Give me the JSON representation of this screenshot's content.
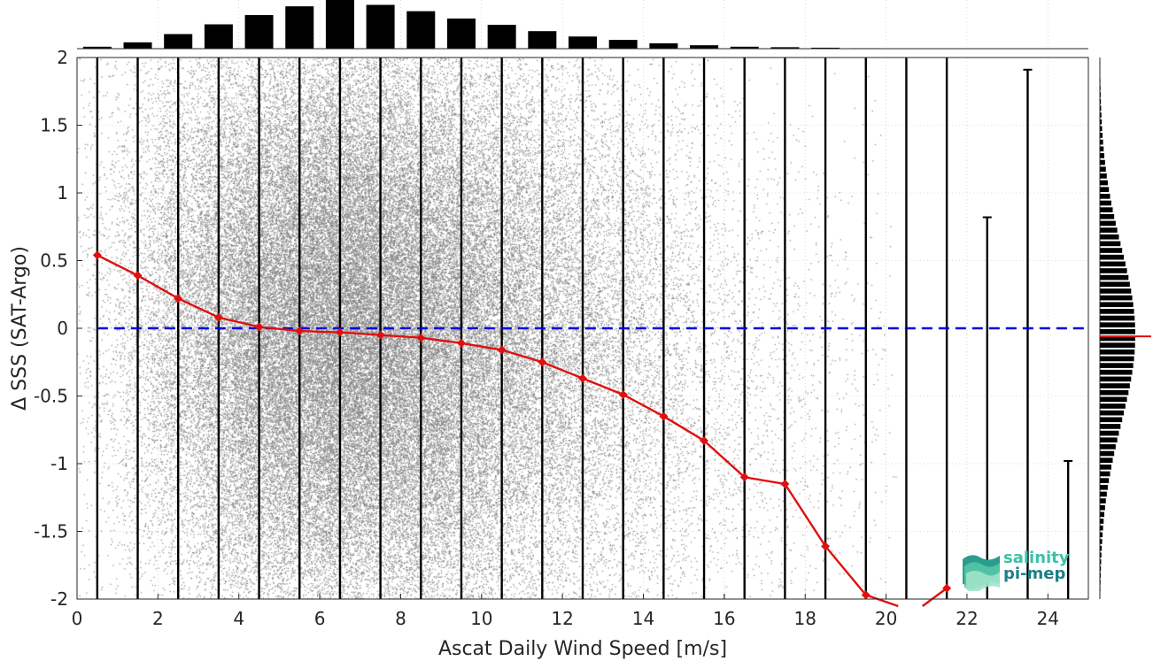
{
  "chart_data": {
    "type": "scatter",
    "xlabel": "Ascat Daily Wind Speed [m/s]",
    "ylabel": "Δ SSS (SAT-Argo)",
    "xlim": [
      0,
      25
    ],
    "ylim": [
      -2,
      2
    ],
    "x_ticks": [
      "0",
      "2",
      "4",
      "6",
      "8",
      "10",
      "12",
      "14",
      "16",
      "18",
      "20",
      "22",
      "24"
    ],
    "y_ticks": [
      "2",
      "1.5",
      "1",
      "0.5",
      "0",
      "-0.5",
      "-1",
      "-1.5",
      "-2"
    ],
    "grid": true,
    "reference_line": {
      "y": 0,
      "style": "dashed",
      "color": "#0000e0"
    },
    "mean_curve": {
      "color": "#e01010",
      "x": [
        0.5,
        1.5,
        2.5,
        3.5,
        4.5,
        5.5,
        6.5,
        7.5,
        8.5,
        9.5,
        10.5,
        11.5,
        12.5,
        13.5,
        14.5,
        15.5,
        16.5,
        17.5,
        18.5,
        19.5,
        21.5
      ],
      "y": [
        0.54,
        0.39,
        0.22,
        0.08,
        0.01,
        -0.02,
        -0.03,
        -0.05,
        -0.07,
        -0.11,
        -0.16,
        -0.25,
        -0.37,
        -0.49,
        -0.65,
        -0.83,
        -1.1,
        -1.15,
        -1.61,
        -1.97,
        -1.92
      ]
    },
    "std_bars": {
      "x": [
        0.5,
        1.5,
        2.5,
        3.5,
        4.5,
        5.5,
        6.5,
        7.5,
        8.5,
        9.5,
        10.5,
        11.5,
        12.5,
        13.5,
        14.5,
        15.5,
        16.5,
        17.5,
        18.5,
        19.5,
        20.5,
        21.5,
        22.5,
        23.5,
        24.5
      ],
      "low": [
        -2,
        -2,
        -2,
        -2,
        -2,
        -2,
        -2,
        -2,
        -2,
        -2,
        -2,
        -2,
        -2,
        -2,
        -2,
        -2,
        -2,
        -2,
        -2,
        -2,
        -2,
        -2,
        -2,
        -2,
        -2
      ],
      "high": [
        2,
        2,
        2,
        2,
        2,
        2,
        2,
        2,
        2,
        2,
        2,
        2,
        2,
        2,
        2,
        2,
        2,
        2,
        2,
        2,
        2,
        2,
        0.82,
        1.91,
        -0.98
      ]
    },
    "top_histogram": {
      "x": [
        0.5,
        1.5,
        2.5,
        3.5,
        4.5,
        5.5,
        6.5,
        7.5,
        8.5,
        9.5,
        10.5,
        11.5,
        12.5,
        13.5,
        14.5,
        15.5,
        16.5,
        17.5,
        18.5,
        19.5
      ],
      "values": [
        0.04,
        0.13,
        0.3,
        0.5,
        0.69,
        0.87,
        1.0,
        0.9,
        0.77,
        0.62,
        0.49,
        0.36,
        0.25,
        0.18,
        0.11,
        0.07,
        0.04,
        0.03,
        0.02,
        0.01
      ]
    },
    "right_histogram": {
      "bin_width": 0.05,
      "peak_y": -0.05,
      "sigma": 0.65,
      "mean_marker": {
        "y": -0.06,
        "color": "#e01010"
      }
    },
    "scatter_color": "#808080"
  },
  "logo": {
    "line1": "salinity",
    "line2": "pi-mep"
  }
}
